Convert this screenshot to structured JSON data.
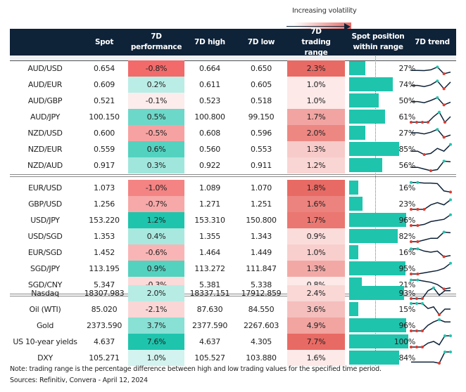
{
  "legend": {
    "label": "Increasing volatility"
  },
  "headers": [
    "",
    "Spot",
    "7D performance",
    "7D high",
    "7D low",
    "7D trading range",
    "Spot position within range",
    "7D trend"
  ],
  "colors": {
    "header": "#0e2238",
    "positive": "#1fc4ad",
    "negative": "#f26a6a",
    "range": "#e86a64",
    "bar": "#1fc4ad",
    "min_marker": "#e03a2f",
    "max_marker": "#1fc4ad"
  },
  "chart_data": {
    "type": "table",
    "groups": [
      {
        "rows": [
          {
            "name": "AUD/USD",
            "spot": "0.654",
            "perf": "-0.8%",
            "high": "0.664",
            "low": "0.650",
            "range": "2.3%",
            "pos": "27%",
            "trend": [
              0.3,
              0.3,
              0.28,
              0.35,
              0.6,
              0.0,
              0.15
            ]
          },
          {
            "name": "AUD/EUR",
            "spot": "0.609",
            "perf": "0.2%",
            "high": "0.611",
            "low": "0.605",
            "range": "1.0%",
            "pos": "74%",
            "trend": [
              0.4,
              0.4,
              0.3,
              0.45,
              0.8,
              0.1,
              0.7
            ]
          },
          {
            "name": "AUD/GBP",
            "spot": "0.521",
            "perf": "-0.1%",
            "high": "0.523",
            "low": "0.518",
            "range": "1.0%",
            "pos": "50%",
            "trend": [
              0.4,
              0.4,
              0.3,
              0.5,
              0.75,
              0.1,
              0.35
            ]
          },
          {
            "name": "AUD/JPY",
            "spot": "100.150",
            "perf": "0.5%",
            "high": "100.800",
            "low": "99.150",
            "range": "1.7%",
            "pos": "61%",
            "trend": [
              0.0,
              0.0,
              0.0,
              0.0,
              0.5,
              0.9,
              0.0,
              0.5
            ]
          },
          {
            "name": "NZD/USD",
            "spot": "0.600",
            "perf": "-0.5%",
            "high": "0.608",
            "low": "0.596",
            "range": "2.0%",
            "pos": "27%",
            "trend": [
              0.5,
              0.5,
              0.4,
              0.55,
              0.8,
              0.1,
              0.3
            ]
          },
          {
            "name": "NZD/EUR",
            "spot": "0.559",
            "perf": "0.6%",
            "high": "0.560",
            "low": "0.553",
            "range": "1.3%",
            "pos": "85%",
            "trend": [
              0.3,
              0.3,
              0.0,
              0.1,
              0.55,
              0.3,
              0.9
            ]
          },
          {
            "name": "NZD/AUD",
            "spot": "0.917",
            "perf": "0.3%",
            "high": "0.922",
            "low": "0.911",
            "range": "1.2%",
            "pos": "56%",
            "trend": [
              0.3,
              0.3,
              0.15,
              0.0,
              0.1,
              0.85,
              0.8
            ]
          }
        ]
      },
      {
        "rows": [
          {
            "name": "EUR/USD",
            "spot": "1.073",
            "perf": "-1.0%",
            "high": "1.089",
            "low": "1.070",
            "range": "1.8%",
            "pos": "16%",
            "trend": [
              0.95,
              0.95,
              0.9,
              0.9,
              0.85,
              0.2,
              0.1
            ]
          },
          {
            "name": "GBP/USD",
            "spot": "1.256",
            "perf": "-0.7%",
            "high": "1.271",
            "low": "1.251",
            "range": "1.6%",
            "pos": "23%",
            "trend": [
              0.0,
              0.0,
              0.0,
              0.4,
              0.6,
              0.4,
              0.85
            ]
          },
          {
            "name": "USD/JPY",
            "spot": "153.220",
            "perf": "1.2%",
            "high": "153.310",
            "low": "150.800",
            "range": "1.7%",
            "pos": "96%",
            "trend": [
              0.0,
              0.0,
              0.1,
              0.35,
              0.45,
              0.55,
              0.95
            ]
          },
          {
            "name": "USD/SGD",
            "spot": "1.353",
            "perf": "0.4%",
            "high": "1.355",
            "low": "1.343",
            "range": "0.9%",
            "pos": "82%",
            "trend": [
              0.0,
              0.0,
              0.15,
              0.3,
              0.3,
              0.85,
              0.8
            ]
          },
          {
            "name": "EUR/SGD",
            "spot": "1.452",
            "perf": "-0.6%",
            "high": "1.464",
            "low": "1.449",
            "range": "1.0%",
            "pos": "16%",
            "trend": [
              0.8,
              0.8,
              0.6,
              0.5,
              0.6,
              0.1,
              0.2
            ]
          },
          {
            "name": "SGD/JPY",
            "spot": "113.195",
            "perf": "0.9%",
            "high": "113.272",
            "low": "111.847",
            "range": "1.3%",
            "pos": "95%",
            "trend": [
              0.0,
              0.0,
              0.1,
              0.2,
              0.3,
              0.5,
              0.95
            ]
          },
          {
            "name": "SGD/CNY",
            "spot": "5.347",
            "perf": "-0.3%",
            "high": "5.381",
            "low": "5.338",
            "range": "0.8%",
            "pos": "21%",
            "trend": [
              0.9,
              0.9,
              0.8,
              0.7,
              0.5,
              0.1,
              0.2
            ]
          }
        ]
      },
      {
        "rows": [
          {
            "name": "Nasdaq",
            "spot": "18307.983",
            "perf": "2.0%",
            "high": "18337.151",
            "low": "17912.859",
            "range": "2.4%",
            "pos": "93%",
            "trend": [
              0.0,
              0.0,
              0.0,
              0.7,
              0.95,
              0.3,
              0.7,
              0.7
            ]
          },
          {
            "name": "Oil (WTI)",
            "spot": "85.020",
            "perf": "-2.1%",
            "high": "87.630",
            "low": "84.550",
            "range": "3.6%",
            "pos": "15%",
            "trend": [
              1.0,
              1.0,
              1.0,
              0.55,
              0.7,
              0.0,
              0.5,
              0.5
            ]
          },
          {
            "name": "Gold",
            "spot": "2373.590",
            "perf": "3.7%",
            "high": "2377.590",
            "low": "2267.603",
            "range": "4.9%",
            "pos": "96%",
            "trend": [
              0.0,
              0.0,
              0.0,
              0.5,
              0.8,
              1.0,
              0.8,
              0.8
            ]
          },
          {
            "name": "US 10-year yields",
            "spot": "4.637",
            "perf": "7.6%",
            "high": "4.637",
            "low": "4.305",
            "range": "7.7%",
            "pos": "100%",
            "trend": [
              0.0,
              0.0,
              0.0,
              0.35,
              0.5,
              0.2,
              1.0,
              1.0
            ]
          },
          {
            "name": "DXY",
            "spot": "105.271",
            "perf": "1.0%",
            "high": "105.527",
            "low": "103.880",
            "range": "1.6%",
            "pos": "84%",
            "trend": [
              0.1,
              0.1,
              0.1,
              0.1,
              0.1,
              0.0,
              1.0,
              1.0
            ]
          }
        ]
      }
    ]
  },
  "notes": {
    "note": "Note: trading range is the percentage difference between high and low trading values for the specified time period.",
    "sources": "Sources: Refinitiv, Convera - April 12, 2024"
  }
}
